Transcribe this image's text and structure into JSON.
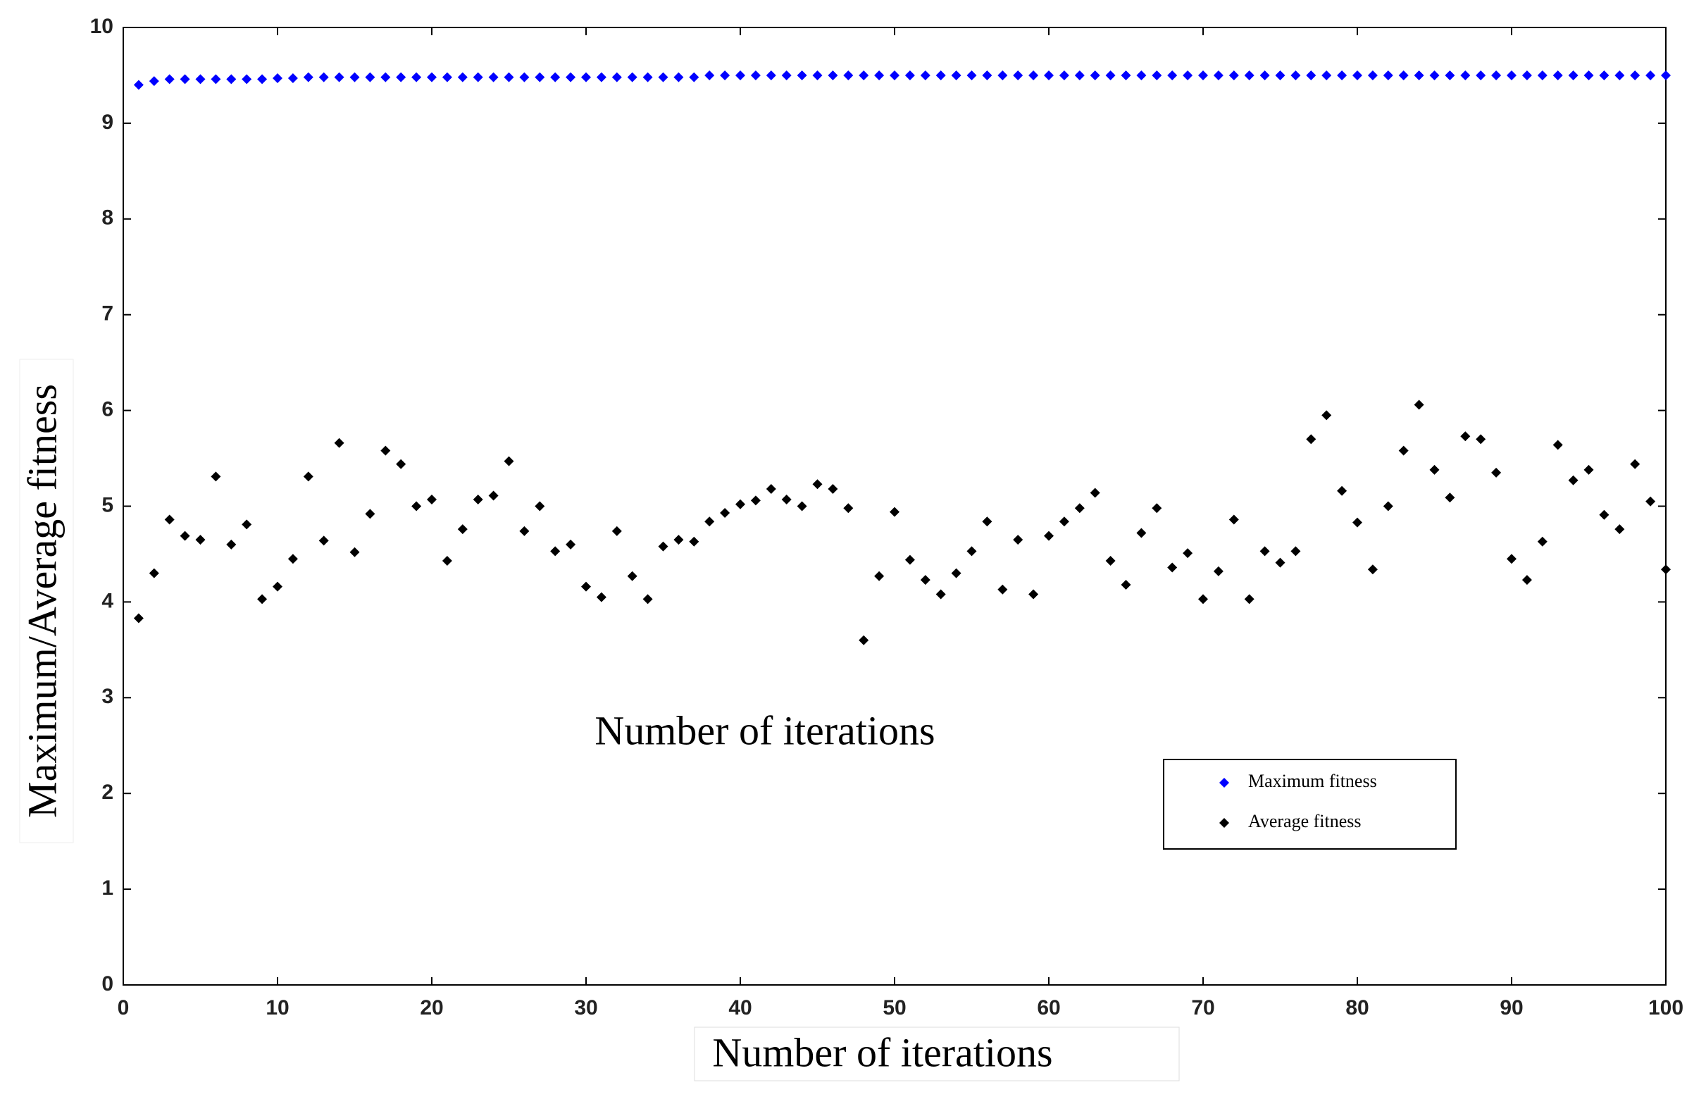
{
  "chart_data": {
    "type": "scatter",
    "y_label": "Maximum/Average fitness",
    "x_label": "Number of iterations",
    "annotation": "Number of iterations",
    "x": [
      1,
      2,
      3,
      4,
      5,
      6,
      7,
      8,
      9,
      10,
      11,
      12,
      13,
      14,
      15,
      16,
      17,
      18,
      19,
      20,
      21,
      22,
      23,
      24,
      25,
      26,
      27,
      28,
      29,
      30,
      31,
      32,
      33,
      34,
      35,
      36,
      37,
      38,
      39,
      40,
      41,
      42,
      43,
      44,
      45,
      46,
      47,
      48,
      49,
      50,
      51,
      52,
      53,
      54,
      55,
      56,
      57,
      58,
      59,
      60,
      61,
      62,
      63,
      64,
      65,
      66,
      67,
      68,
      69,
      70,
      71,
      72,
      73,
      74,
      75,
      76,
      77,
      78,
      79,
      80,
      81,
      82,
      83,
      84,
      85,
      86,
      87,
      88,
      89,
      90,
      91,
      92,
      93,
      94,
      95,
      96,
      97,
      98,
      99,
      100
    ],
    "series": [
      {
        "name": "Maximum fitness",
        "color": "#0000ff",
        "values": [
          9.4,
          9.44,
          9.46,
          9.46,
          9.46,
          9.46,
          9.46,
          9.46,
          9.46,
          9.47,
          9.47,
          9.48,
          9.48,
          9.48,
          9.48,
          9.48,
          9.48,
          9.48,
          9.48,
          9.48,
          9.48,
          9.48,
          9.48,
          9.48,
          9.48,
          9.48,
          9.48,
          9.48,
          9.48,
          9.48,
          9.48,
          9.48,
          9.48,
          9.48,
          9.48,
          9.48,
          9.48,
          9.5,
          9.5,
          9.5,
          9.5,
          9.5,
          9.5,
          9.5,
          9.5,
          9.5,
          9.5,
          9.5,
          9.5,
          9.5,
          9.5,
          9.5,
          9.5,
          9.5,
          9.5,
          9.5,
          9.5,
          9.5,
          9.5,
          9.5,
          9.5,
          9.5,
          9.5,
          9.5,
          9.5,
          9.5,
          9.5,
          9.5,
          9.5,
          9.5,
          9.5,
          9.5,
          9.5,
          9.5,
          9.5,
          9.5,
          9.5,
          9.5,
          9.5,
          9.5,
          9.5,
          9.5,
          9.5,
          9.5,
          9.5,
          9.5,
          9.5,
          9.5,
          9.5,
          9.5,
          9.5,
          9.5,
          9.5,
          9.5,
          9.5,
          9.5,
          9.5,
          9.5,
          9.5,
          9.5
        ]
      },
      {
        "name": "Average fitness",
        "color": "#000000",
        "values": [
          3.83,
          4.3,
          4.86,
          4.69,
          4.65,
          5.31,
          4.6,
          4.81,
          4.03,
          4.16,
          4.45,
          5.31,
          4.64,
          5.66,
          4.52,
          4.92,
          5.58,
          5.44,
          5.0,
          5.07,
          4.43,
          4.76,
          5.07,
          5.11,
          5.47,
          4.74,
          5.0,
          4.53,
          4.6,
          4.16,
          4.05,
          4.74,
          4.27,
          4.03,
          4.58,
          4.65,
          4.63,
          4.84,
          4.93,
          5.02,
          5.06,
          5.18,
          5.07,
          5.0,
          5.23,
          5.18,
          4.98,
          3.6,
          4.27,
          4.94,
          4.44,
          4.23,
          4.08,
          4.3,
          4.53,
          4.84,
          4.13,
          4.65,
          4.08,
          4.69,
          4.84,
          4.98,
          5.14,
          4.43,
          4.18,
          4.72,
          4.98,
          4.36,
          4.51,
          4.03,
          4.32,
          4.86,
          4.03,
          4.53,
          4.41,
          4.53,
          5.7,
          5.95,
          5.16,
          4.83,
          4.34,
          5.0,
          5.58,
          6.06,
          5.38,
          5.09,
          5.73,
          5.7,
          5.35,
          4.45,
          4.23,
          4.63,
          5.64,
          5.27,
          5.38,
          4.91,
          4.76,
          5.44,
          5.05,
          4.34
        ]
      }
    ],
    "xlim": [
      0,
      100
    ],
    "xticks": [
      0,
      10,
      20,
      30,
      40,
      50,
      60,
      70,
      80,
      90,
      100
    ],
    "ylim": [
      0,
      10
    ],
    "yticks": [
      0,
      1,
      2,
      3,
      4,
      5,
      6,
      7,
      8,
      9,
      10
    ]
  }
}
